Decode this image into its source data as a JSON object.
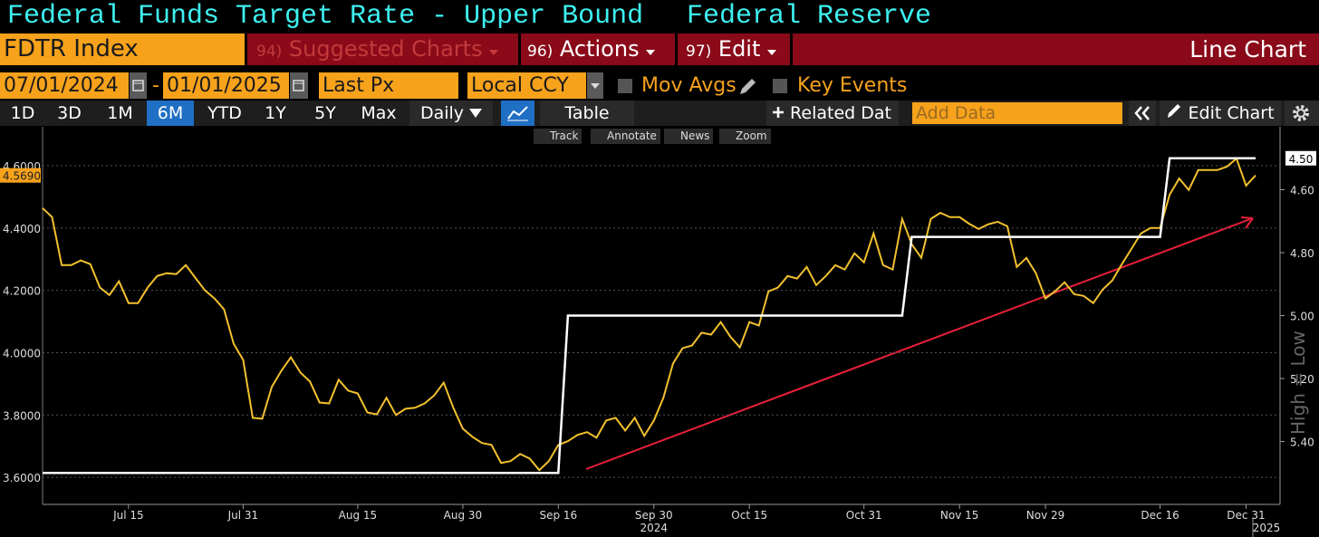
{
  "header": {
    "title": "Federal Funds Target Rate - Upper Bound",
    "source": "Federal Reserve"
  },
  "toolbar": {
    "ticker": "FDTR Index",
    "suggested_num": "94)",
    "suggested": "Suggested Charts",
    "actions_num": "96)",
    "actions": "Actions",
    "edit_num": "97)",
    "edit": "Edit",
    "chart_type": "Line Chart"
  },
  "controls": {
    "start_date": "07/01/2024",
    "separator": "-",
    "end_date": "01/01/2025",
    "field": "Last Px",
    "currency": "Local CCY",
    "mov_avgs": "Mov Avgs",
    "key_events": "Key Events"
  },
  "tabs": [
    "1D",
    "3D",
    "1M",
    "6M",
    "YTD",
    "1Y",
    "5Y",
    "Max"
  ],
  "active_tab": "6M",
  "frequency": "Daily",
  "table": "Table",
  "related": "Related Dat",
  "add_data": "Add Data",
  "edit_chart": "Edit Chart",
  "chart_tools": [
    "Track",
    "Annotate",
    "News",
    "Zoom"
  ],
  "chart_data": {
    "type": "line",
    "categories": [
      null,
      null,
      null,
      null,
      null,
      null,
      null,
      null,
      null,
      "Jul 15",
      null,
      null,
      null,
      null,
      null,
      null,
      null,
      null,
      null,
      null,
      null,
      "Jul 31",
      null,
      null,
      null,
      null,
      null,
      null,
      null,
      null,
      null,
      null,
      null,
      "Aug 15",
      null,
      null,
      null,
      null,
      null,
      null,
      null,
      null,
      null,
      null,
      "Aug 30",
      null,
      null,
      null,
      null,
      null,
      null,
      null,
      null,
      null,
      "Sep 16",
      null,
      null,
      null,
      null,
      null,
      null,
      null,
      null,
      null,
      "Sep 30",
      null,
      null,
      null,
      null,
      null,
      null,
      null,
      null,
      null,
      "Oct 15",
      null,
      null,
      null,
      null,
      null,
      null,
      null,
      null,
      null,
      null,
      null,
      "Oct 31",
      null,
      null,
      null,
      null,
      null,
      null,
      null,
      null,
      null,
      "Nov 15",
      null,
      null,
      null,
      null,
      null,
      null,
      null,
      null,
      "Nov 29",
      null,
      null,
      null,
      null,
      null,
      null,
      null,
      null,
      null,
      null,
      null,
      "Dec 16",
      null,
      null,
      null,
      null,
      null,
      null,
      null,
      null,
      "Dec 31",
      null
    ],
    "x_year_labels": [
      "2024",
      "2025"
    ],
    "ylim": [
      3.513,
      4.725
    ],
    "yticks": [
      {
        "value": 3.6,
        "label": "3.6000"
      },
      {
        "value": 3.8,
        "label": "3.8000"
      },
      {
        "value": 4.0,
        "label": "4.0000"
      },
      {
        "value": 4.2,
        "label": "4.2000"
      },
      {
        "value": 4.4,
        "label": "4.4000"
      },
      {
        "value": 4.6,
        "label": "4.6000"
      }
    ],
    "y2lim": [
      5.6,
      4.4
    ],
    "y2ticks": [
      {
        "value": 4.6,
        "label": "4.60"
      },
      {
        "value": 4.8,
        "label": "4.80"
      },
      {
        "value": 5.0,
        "label": "5.00"
      },
      {
        "value": 5.2,
        "label": "5.20"
      },
      {
        "value": 5.4,
        "label": "5.40"
      }
    ],
    "y2_label": "High = Low",
    "grid": true,
    "series": [
      {
        "color": "#f2c12e",
        "last_label": "4.5690",
        "values": [
          4.464,
          4.435,
          4.281,
          4.281,
          4.296,
          4.284,
          4.209,
          4.185,
          4.229,
          4.159,
          4.159,
          4.209,
          4.246,
          4.255,
          4.252,
          4.281,
          4.24,
          4.2,
          4.174,
          4.139,
          4.029,
          3.977,
          3.791,
          3.788,
          3.89,
          3.942,
          3.985,
          3.936,
          3.907,
          3.84,
          3.837,
          3.913,
          3.878,
          3.869,
          3.808,
          3.802,
          3.855,
          3.8,
          3.82,
          3.823,
          3.837,
          3.863,
          3.904,
          3.823,
          3.756,
          3.73,
          3.71,
          3.704,
          3.646,
          3.652,
          3.675,
          3.66,
          3.623,
          3.652,
          3.704,
          3.716,
          3.736,
          3.745,
          3.727,
          3.782,
          3.791,
          3.75,
          3.791,
          3.733,
          3.782,
          3.855,
          3.965,
          4.014,
          4.023,
          4.064,
          4.058,
          4.098,
          4.052,
          4.017,
          4.098,
          4.087,
          4.197,
          4.209,
          4.246,
          4.238,
          4.275,
          4.217,
          4.246,
          4.281,
          4.267,
          4.319,
          4.29,
          4.383,
          4.281,
          4.267,
          4.429,
          4.348,
          4.304,
          4.429,
          4.449,
          4.435,
          4.435,
          4.414,
          4.397,
          4.412,
          4.42,
          4.406,
          4.275,
          4.304,
          4.255,
          4.174,
          4.197,
          4.226,
          4.188,
          4.182,
          4.159,
          4.203,
          4.232,
          4.284,
          4.333,
          4.383,
          4.4,
          4.4,
          4.507,
          4.559,
          4.522,
          4.586,
          4.586,
          4.586,
          4.597,
          4.623,
          4.536,
          4.569
        ]
      },
      {
        "color": "#ffffff",
        "axis": "y2",
        "last_label": "4.50",
        "values": [
          5.5,
          5.5,
          5.5,
          5.5,
          5.5,
          5.5,
          5.5,
          5.5,
          5.5,
          5.5,
          5.5,
          5.5,
          5.5,
          5.5,
          5.5,
          5.5,
          5.5,
          5.5,
          5.5,
          5.5,
          5.5,
          5.5,
          5.5,
          5.5,
          5.5,
          5.5,
          5.5,
          5.5,
          5.5,
          5.5,
          5.5,
          5.5,
          5.5,
          5.5,
          5.5,
          5.5,
          5.5,
          5.5,
          5.5,
          5.5,
          5.5,
          5.5,
          5.5,
          5.5,
          5.5,
          5.5,
          5.5,
          5.5,
          5.5,
          5.5,
          5.5,
          5.5,
          5.5,
          5.5,
          5.5,
          5.0,
          5.0,
          5.0,
          5.0,
          5.0,
          5.0,
          5.0,
          5.0,
          5.0,
          5.0,
          5.0,
          5.0,
          5.0,
          5.0,
          5.0,
          5.0,
          5.0,
          5.0,
          5.0,
          5.0,
          5.0,
          5.0,
          5.0,
          5.0,
          5.0,
          5.0,
          5.0,
          5.0,
          5.0,
          5.0,
          5.0,
          5.0,
          5.0,
          5.0,
          5.0,
          5.0,
          4.75,
          4.75,
          4.75,
          4.75,
          4.75,
          4.75,
          4.75,
          4.75,
          4.75,
          4.75,
          4.75,
          4.75,
          4.75,
          4.75,
          4.75,
          4.75,
          4.75,
          4.75,
          4.75,
          4.75,
          4.75,
          4.75,
          4.75,
          4.75,
          4.75,
          4.75,
          4.75,
          4.5,
          4.5,
          4.5,
          4.5,
          4.5,
          4.5,
          4.5,
          4.5,
          4.5,
          4.5
        ]
      }
    ]
  }
}
